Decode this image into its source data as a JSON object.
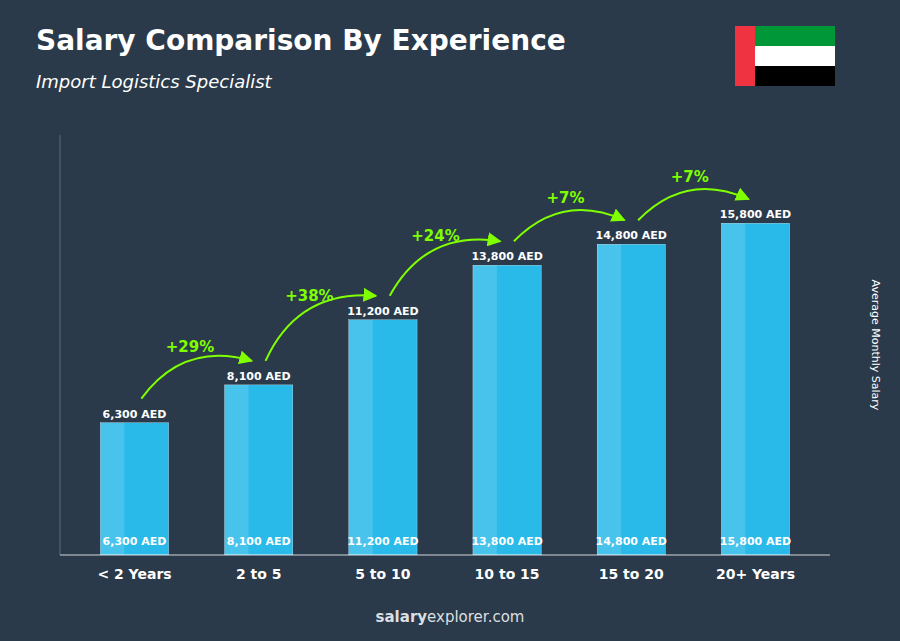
{
  "chart_data": {
    "type": "bar",
    "title": "Salary Comparison By Experience",
    "subtitle": "Import Logistics Specialist",
    "y_label": "Average Monthly Salary",
    "categories": [
      "< 2 Years",
      "2 to 5",
      "5 to 10",
      "10 to 15",
      "15 to 20",
      "20+ Years"
    ],
    "values": [
      6300,
      8100,
      11200,
      13800,
      14800,
      15800
    ],
    "value_labels": [
      "6,300 AED",
      "8,100 AED",
      "11,200 AED",
      "13,800 AED",
      "14,800 AED",
      "15,800 AED"
    ],
    "data_labels": true,
    "color": "#29c5f6",
    "ylim": [
      0,
      20000
    ],
    "tick_labels": "x",
    "grid": false,
    "annotations": [
      {
        "text": "+29%",
        "color": "#7fff00"
      },
      {
        "text": "+38%",
        "color": "#7fff00"
      },
      {
        "text": "+24%",
        "color": "#7fff00"
      },
      {
        "text": "+7%",
        "color": "#7fff00"
      },
      {
        "text": "+7%",
        "color": "#7fff00"
      }
    ],
    "watermark": "salaryexplorer.com",
    "watermark_bold": "salary"
  }
}
